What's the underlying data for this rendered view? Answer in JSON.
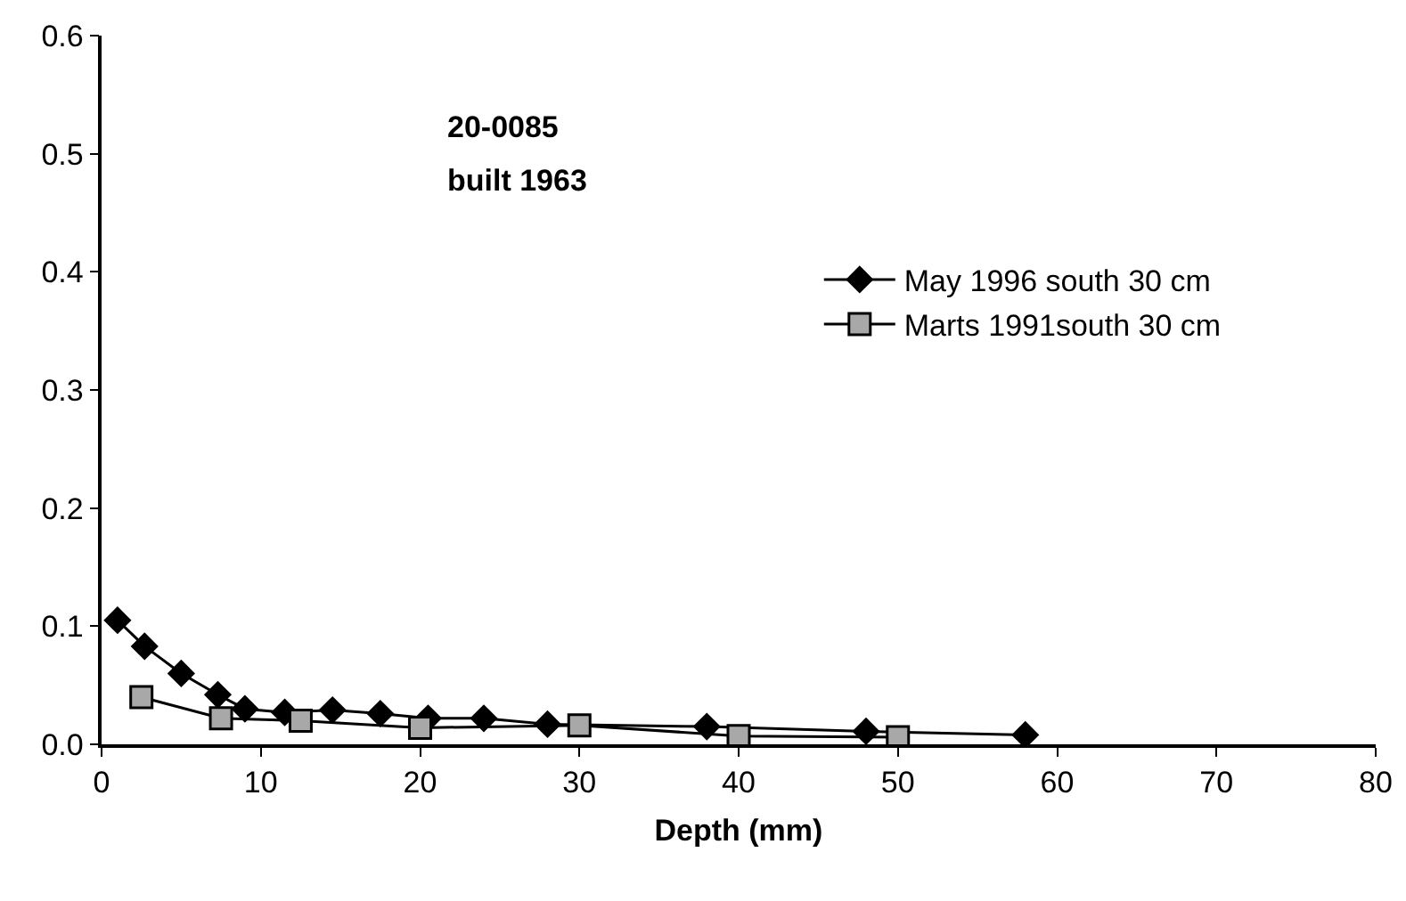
{
  "chart_data": {
    "type": "line",
    "xlabel": "Depth (mm)",
    "annotations": [
      "20-0085",
      "built 1963"
    ],
    "xlim": [
      0,
      80
    ],
    "xticks": [
      0,
      10,
      20,
      30,
      40,
      50,
      60,
      70,
      80
    ],
    "ylim": [
      0,
      0.6
    ],
    "yticks": [
      "0.0",
      0.1,
      0.2,
      0.3,
      0.4,
      0.5,
      0.6
    ],
    "grid": false,
    "legend": "right",
    "series": [
      {
        "name": "May 1996 south 30 cm",
        "color": "#000000",
        "marker": "diamond",
        "x": [
          1,
          2.7,
          5,
          7.3,
          9,
          11.5,
          14.5,
          17.5,
          20.5,
          24,
          28,
          38,
          48,
          58
        ],
        "values": [
          0.105,
          0.083,
          0.06,
          0.042,
          0.03,
          0.027,
          0.029,
          0.026,
          0.022,
          0.022,
          0.017,
          0.015,
          0.011,
          0.008
        ]
      },
      {
        "name": "Marts 1991south 30 cm",
        "color": "#000000",
        "marker": "square",
        "x": [
          2.5,
          7.5,
          12.5,
          20,
          30,
          40,
          50
        ],
        "values": [
          0.04,
          0.022,
          0.02,
          0.014,
          0.016,
          0.007,
          0.006
        ]
      }
    ]
  }
}
